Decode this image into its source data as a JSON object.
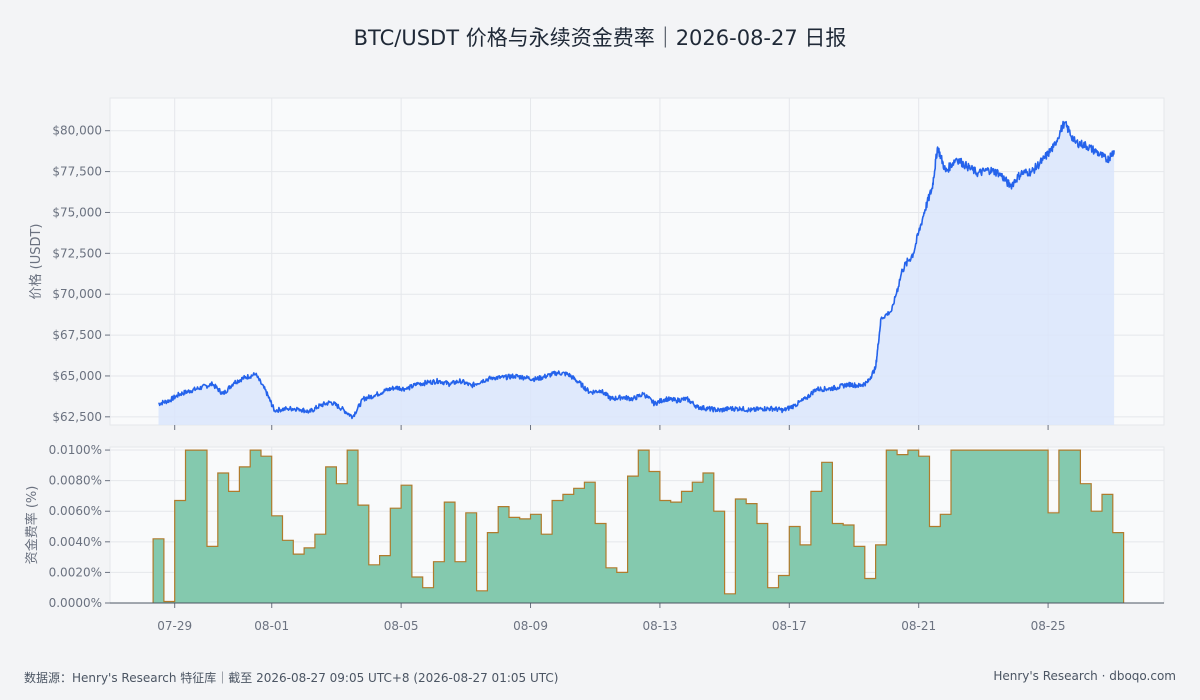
{
  "page": {
    "title": "BTC/USDT 价格与永续资金费率｜2026-08-27 日报",
    "footer_left": "数据源：Henry's Research 特征库｜截至 2026-08-27 09:05 UTC+8 (2026-08-27 01:05 UTC)",
    "footer_right": "Henry's Research · dboqo.com"
  },
  "colors": {
    "price_line": "#2563eb",
    "price_fill": "#dbe5fb",
    "funding_fill": "#84c9ae",
    "funding_stroke": "#b07b2c",
    "grid": "#e5e7eb",
    "panel_bg": "#f9fafb"
  },
  "chart_data": [
    {
      "type": "line",
      "ylabel": "价格 (USDT)",
      "ylim": [
        62000,
        82000
      ],
      "y_ticks": [
        62500,
        65000,
        67500,
        70000,
        72500,
        75000,
        77500,
        80000
      ],
      "y_tick_labels": [
        "$62,500",
        "$65,000",
        "$67,500",
        "$70,000",
        "$72,500",
        "$75,000",
        "$77,500",
        "$80,000"
      ],
      "x_tick_dates": [
        "2026-07-29",
        "2026-08-01",
        "2026-08-05",
        "2026-08-09",
        "2026-08-13",
        "2026-08-17",
        "2026-08-21",
        "2026-08-25"
      ],
      "x_tick_labels": [
        "07-29",
        "08-01",
        "08-05",
        "08-09",
        "08-13",
        "08-17",
        "08-21",
        "08-25"
      ],
      "series": [
        {
          "values": [
            [
              "2026-07-28 12:00",
              63300
            ],
            [
              "2026-07-28 20:00",
              63500
            ],
            [
              "2026-07-29 04:00",
              63900
            ],
            [
              "2026-07-29 12:00",
              64100
            ],
            [
              "2026-07-29 20:00",
              64300
            ],
            [
              "2026-07-30 04:00",
              64500
            ],
            [
              "2026-07-30 12:00",
              63900
            ],
            [
              "2026-07-30 20:00",
              64600
            ],
            [
              "2026-07-31 04:00",
              64900
            ],
            [
              "2026-07-31 12:00",
              65100
            ],
            [
              "2026-07-31 20:00",
              64000
            ],
            [
              "2026-08-01 02:00",
              62900
            ],
            [
              "2026-08-01 12:00",
              63000
            ],
            [
              "2026-08-01 20:00",
              63000
            ],
            [
              "2026-08-02 04:00",
              62800
            ],
            [
              "2026-08-02 12:00",
              63200
            ],
            [
              "2026-08-02 20:00",
              63400
            ],
            [
              "2026-08-03 04:00",
              63000
            ],
            [
              "2026-08-03 12:00",
              62500
            ],
            [
              "2026-08-03 20:00",
              63600
            ],
            [
              "2026-08-04 04:00",
              63800
            ],
            [
              "2026-08-04 12:00",
              64100
            ],
            [
              "2026-08-04 20:00",
              64300
            ],
            [
              "2026-08-05 04:00",
              64200
            ],
            [
              "2026-08-05 12:00",
              64500
            ],
            [
              "2026-08-05 20:00",
              64600
            ],
            [
              "2026-08-06 04:00",
              64700
            ],
            [
              "2026-08-06 12:00",
              64500
            ],
            [
              "2026-08-06 20:00",
              64700
            ],
            [
              "2026-08-07 04:00",
              64400
            ],
            [
              "2026-08-07 12:00",
              64700
            ],
            [
              "2026-08-07 20:00",
              64900
            ],
            [
              "2026-08-08 04:00",
              64900
            ],
            [
              "2026-08-08 12:00",
              65000
            ],
            [
              "2026-08-08 20:00",
              64900
            ],
            [
              "2026-08-09 04:00",
              64800
            ],
            [
              "2026-08-09 12:00",
              65000
            ],
            [
              "2026-08-09 20:00",
              65200
            ],
            [
              "2026-08-10 04:00",
              65100
            ],
            [
              "2026-08-10 12:00",
              64600
            ],
            [
              "2026-08-10 20:00",
              64000
            ],
            [
              "2026-08-11 04:00",
              64100
            ],
            [
              "2026-08-11 12:00",
              63600
            ],
            [
              "2026-08-11 20:00",
              63700
            ],
            [
              "2026-08-12 04:00",
              63600
            ],
            [
              "2026-08-12 12:00",
              63900
            ],
            [
              "2026-08-12 20:00",
              63300
            ],
            [
              "2026-08-13 04:00",
              63600
            ],
            [
              "2026-08-13 12:00",
              63500
            ],
            [
              "2026-08-13 20:00",
              63600
            ],
            [
              "2026-08-14 04:00",
              63100
            ],
            [
              "2026-08-14 12:00",
              63000
            ],
            [
              "2026-08-14 20:00",
              62900
            ],
            [
              "2026-08-15 04:00",
              63000
            ],
            [
              "2026-08-15 12:00",
              63000
            ],
            [
              "2026-08-15 20:00",
              62900
            ],
            [
              "2026-08-16 04:00",
              63000
            ],
            [
              "2026-08-16 12:00",
              63000
            ],
            [
              "2026-08-16 20:00",
              62900
            ],
            [
              "2026-08-17 04:00",
              63200
            ],
            [
              "2026-08-17 12:00",
              63600
            ],
            [
              "2026-08-17 20:00",
              64200
            ],
            [
              "2026-08-18 04:00",
              64200
            ],
            [
              "2026-08-18 12:00",
              64300
            ],
            [
              "2026-08-18 20:00",
              64500
            ],
            [
              "2026-08-19 04:00",
              64400
            ],
            [
              "2026-08-19 10:00",
              64600
            ],
            [
              "2026-08-19 16:00",
              65500
            ],
            [
              "2026-08-19 20:00",
              68500
            ],
            [
              "2026-08-20 04:00",
              69000
            ],
            [
              "2026-08-20 12:00",
              71500
            ],
            [
              "2026-08-20 20:00",
              72500
            ],
            [
              "2026-08-21 04:00",
              75000
            ],
            [
              "2026-08-21 10:00",
              76500
            ],
            [
              "2026-08-21 14:00",
              79000
            ],
            [
              "2026-08-21 20:00",
              77500
            ],
            [
              "2026-08-22 04:00",
              78300
            ],
            [
              "2026-08-22 12:00",
              77800
            ],
            [
              "2026-08-22 20:00",
              77400
            ],
            [
              "2026-08-23 04:00",
              77600
            ],
            [
              "2026-08-23 12:00",
              77400
            ],
            [
              "2026-08-23 20:00",
              76600
            ],
            [
              "2026-08-24 04:00",
              77400
            ],
            [
              "2026-08-24 12:00",
              77500
            ],
            [
              "2026-08-24 20:00",
              78200
            ],
            [
              "2026-08-25 04:00",
              79000
            ],
            [
              "2026-08-25 12:00",
              80500
            ],
            [
              "2026-08-25 20:00",
              79300
            ],
            [
              "2026-08-26 04:00",
              79100
            ],
            [
              "2026-08-26 12:00",
              78700
            ],
            [
              "2026-08-26 20:00",
              78200
            ],
            [
              "2026-08-27 01:00",
              78800
            ]
          ]
        }
      ]
    },
    {
      "type": "area",
      "ylabel": "资金费率 (%)",
      "ylim": [
        0,
        0.0102
      ],
      "y_ticks": [
        0,
        0.002,
        0.004,
        0.006,
        0.008,
        0.01
      ],
      "y_tick_labels": [
        "0.0000%",
        "0.0020%",
        "0.0040%",
        "0.0060%",
        "0.0080%",
        "0.0100%"
      ],
      "step": true,
      "series": [
        {
          "values": [
            [
              "2026-07-28 08:00",
              0.0042
            ],
            [
              "2026-07-28 16:00",
              0.0001
            ],
            [
              "2026-07-29 00:00",
              0.0067
            ],
            [
              "2026-07-29 08:00",
              0.01
            ],
            [
              "2026-07-29 16:00",
              0.01
            ],
            [
              "2026-07-30 00:00",
              0.0037
            ],
            [
              "2026-07-30 08:00",
              0.0085
            ],
            [
              "2026-07-30 16:00",
              0.0073
            ],
            [
              "2026-07-31 00:00",
              0.0089
            ],
            [
              "2026-07-31 08:00",
              0.01
            ],
            [
              "2026-07-31 16:00",
              0.0096
            ],
            [
              "2026-08-01 00:00",
              0.0057
            ],
            [
              "2026-08-01 08:00",
              0.0041
            ],
            [
              "2026-08-01 16:00",
              0.0032
            ],
            [
              "2026-08-02 00:00",
              0.0036
            ],
            [
              "2026-08-02 08:00",
              0.0045
            ],
            [
              "2026-08-02 16:00",
              0.0089
            ],
            [
              "2026-08-03 00:00",
              0.0078
            ],
            [
              "2026-08-03 08:00",
              0.01
            ],
            [
              "2026-08-03 16:00",
              0.0064
            ],
            [
              "2026-08-04 00:00",
              0.0025
            ],
            [
              "2026-08-04 08:00",
              0.0031
            ],
            [
              "2026-08-04 16:00",
              0.0062
            ],
            [
              "2026-08-05 00:00",
              0.0077
            ],
            [
              "2026-08-05 08:00",
              0.0017
            ],
            [
              "2026-08-05 16:00",
              0.001
            ],
            [
              "2026-08-06 00:00",
              0.0027
            ],
            [
              "2026-08-06 08:00",
              0.0066
            ],
            [
              "2026-08-06 16:00",
              0.0027
            ],
            [
              "2026-08-07 00:00",
              0.0059
            ],
            [
              "2026-08-07 08:00",
              0.0008
            ],
            [
              "2026-08-07 16:00",
              0.0046
            ],
            [
              "2026-08-08 00:00",
              0.0063
            ],
            [
              "2026-08-08 08:00",
              0.0056
            ],
            [
              "2026-08-08 16:00",
              0.0055
            ],
            [
              "2026-08-09 00:00",
              0.0058
            ],
            [
              "2026-08-09 08:00",
              0.0045
            ],
            [
              "2026-08-09 16:00",
              0.0067
            ],
            [
              "2026-08-10 00:00",
              0.0071
            ],
            [
              "2026-08-10 08:00",
              0.0075
            ],
            [
              "2026-08-10 16:00",
              0.0079
            ],
            [
              "2026-08-11 00:00",
              0.0052
            ],
            [
              "2026-08-11 08:00",
              0.0023
            ],
            [
              "2026-08-11 16:00",
              0.002
            ],
            [
              "2026-08-12 00:00",
              0.0083
            ],
            [
              "2026-08-12 08:00",
              0.01
            ],
            [
              "2026-08-12 16:00",
              0.0086
            ],
            [
              "2026-08-13 00:00",
              0.0067
            ],
            [
              "2026-08-13 08:00",
              0.0066
            ],
            [
              "2026-08-13 16:00",
              0.0073
            ],
            [
              "2026-08-14 00:00",
              0.0079
            ],
            [
              "2026-08-14 08:00",
              0.0085
            ],
            [
              "2026-08-14 16:00",
              0.006
            ],
            [
              "2026-08-15 00:00",
              0.0006
            ],
            [
              "2026-08-15 08:00",
              0.0068
            ],
            [
              "2026-08-15 16:00",
              0.0065
            ],
            [
              "2026-08-16 00:00",
              0.0052
            ],
            [
              "2026-08-16 08:00",
              0.001
            ],
            [
              "2026-08-16 16:00",
              0.0018
            ],
            [
              "2026-08-17 00:00",
              0.005
            ],
            [
              "2026-08-17 08:00",
              0.0038
            ],
            [
              "2026-08-17 16:00",
              0.0073
            ],
            [
              "2026-08-18 00:00",
              0.0092
            ],
            [
              "2026-08-18 08:00",
              0.0052
            ],
            [
              "2026-08-18 16:00",
              0.0051
            ],
            [
              "2026-08-19 00:00",
              0.0037
            ],
            [
              "2026-08-19 08:00",
              0.0016
            ],
            [
              "2026-08-19 16:00",
              0.0038
            ],
            [
              "2026-08-20 00:00",
              0.01
            ],
            [
              "2026-08-20 08:00",
              0.0097
            ],
            [
              "2026-08-20 16:00",
              0.01
            ],
            [
              "2026-08-21 00:00",
              0.0096
            ],
            [
              "2026-08-21 08:00",
              0.005
            ],
            [
              "2026-08-21 16:00",
              0.0058
            ],
            [
              "2026-08-22 00:00",
              0.01
            ],
            [
              "2026-08-22 08:00",
              0.01
            ],
            [
              "2026-08-22 16:00",
              0.01
            ],
            [
              "2026-08-23 00:00",
              0.01
            ],
            [
              "2026-08-23 08:00",
              0.01
            ],
            [
              "2026-08-23 16:00",
              0.01
            ],
            [
              "2026-08-24 00:00",
              0.01
            ],
            [
              "2026-08-24 08:00",
              0.01
            ],
            [
              "2026-08-24 16:00",
              0.01
            ],
            [
              "2026-08-25 00:00",
              0.0059
            ],
            [
              "2026-08-25 08:00",
              0.01
            ],
            [
              "2026-08-25 16:00",
              0.01
            ],
            [
              "2026-08-26 00:00",
              0.0078
            ],
            [
              "2026-08-26 08:00",
              0.006
            ],
            [
              "2026-08-26 16:00",
              0.0071
            ],
            [
              "2026-08-27 00:00",
              0.0046
            ]
          ]
        }
      ]
    }
  ]
}
